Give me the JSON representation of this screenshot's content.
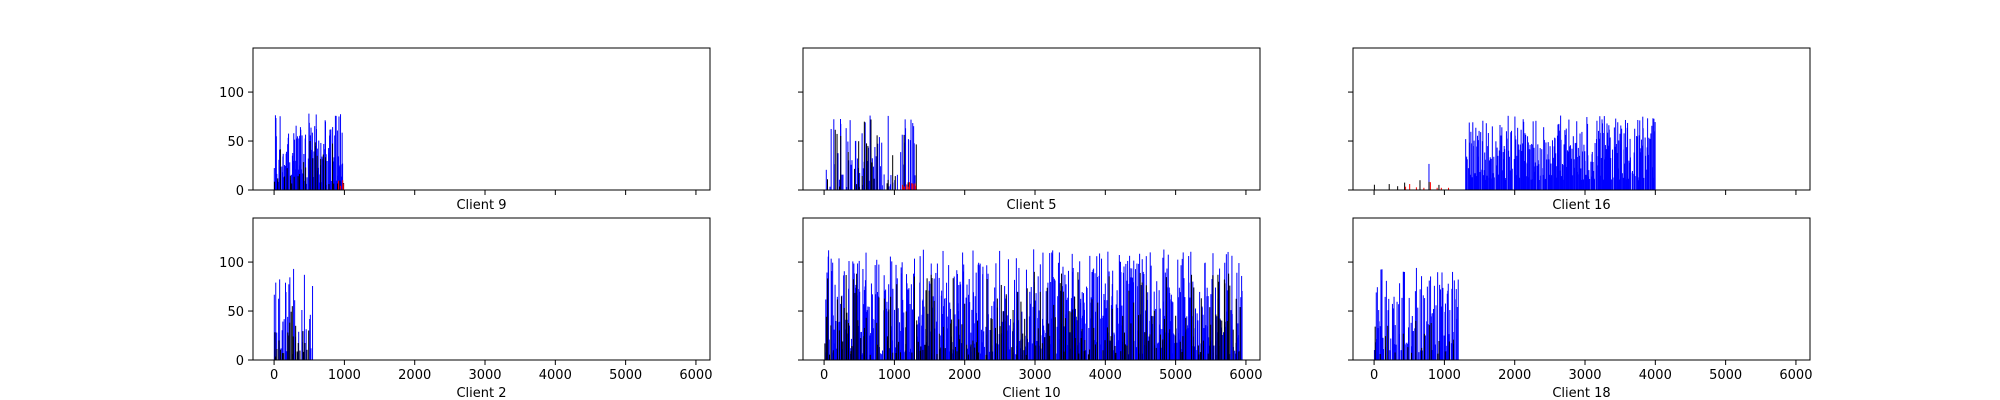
{
  "chart_data": [
    {
      "type": "bar",
      "title": "",
      "xlabel": "Client 9",
      "ylabel": "",
      "xlim": [
        -300,
        6200
      ],
      "ylim": [
        0,
        145
      ],
      "xticks": [
        0,
        1000,
        2000,
        3000,
        4000,
        5000,
        6000
      ],
      "yticks": [
        0,
        50,
        100
      ],
      "show_xticklabels": false,
      "show_yticklabels": true,
      "series": [
        {
          "color": "#0000ff",
          "seed": 9,
          "x_range": [
            0,
            980
          ],
          "n": 130,
          "y_min": 5,
          "y_max": 78,
          "coverage": 0.85
        },
        {
          "color": "#000000",
          "seed": 19,
          "x_range": [
            0,
            1000
          ],
          "n": 25,
          "y_min": 5,
          "y_max": 50,
          "coverage": 1.0
        },
        {
          "color": "#ff0000",
          "seed": 29,
          "x_range": [
            900,
            1010
          ],
          "n": 4,
          "y_min": 2,
          "y_max": 10,
          "coverage": 1.0
        }
      ]
    },
    {
      "type": "bar",
      "title": "",
      "xlabel": "Client 5",
      "ylabel": "",
      "xlim": [
        -300,
        6200
      ],
      "ylim": [
        0,
        145
      ],
      "xticks": [
        0,
        1000,
        2000,
        3000,
        4000,
        5000,
        6000
      ],
      "yticks": [
        0,
        50,
        100
      ],
      "show_xticklabels": false,
      "show_yticklabels": false,
      "series": [
        {
          "color": "#0000ff",
          "seed": 5,
          "x_range": [
            0,
            1300
          ],
          "n": 110,
          "y_min": 3,
          "y_max": 76,
          "coverage": 0.6
        },
        {
          "color": "#000000",
          "seed": 15,
          "x_range": [
            0,
            1320
          ],
          "n": 45,
          "y_min": 3,
          "y_max": 72,
          "coverage": 0.7
        },
        {
          "color": "#ff0000",
          "seed": 25,
          "x_range": [
            1100,
            1320
          ],
          "n": 10,
          "y_min": 2,
          "y_max": 8,
          "coverage": 1.0
        }
      ]
    },
    {
      "type": "bar",
      "title": "",
      "xlabel": "Client 16",
      "ylabel": "",
      "xlim": [
        -300,
        6200
      ],
      "ylim": [
        0,
        145
      ],
      "xticks": [
        0,
        1000,
        2000,
        3000,
        4000,
        5000,
        6000
      ],
      "yticks": [
        0,
        50,
        100
      ],
      "show_xticklabels": false,
      "show_yticklabels": false,
      "series": [
        {
          "color": "#0000ff",
          "seed": 16,
          "x_range": [
            0,
            1250
          ],
          "n": 18,
          "y_min": 3,
          "y_max": 65,
          "coverage": 0.15
        },
        {
          "color": "#0000ff",
          "seed": 26,
          "x_range": [
            1300,
            4000
          ],
          "n": 340,
          "y_min": 10,
          "y_max": 76,
          "coverage": 0.9
        },
        {
          "color": "#000000",
          "seed": 36,
          "x_range": [
            0,
            1300
          ],
          "n": 10,
          "y_min": 2,
          "y_max": 10,
          "coverage": 0.5
        },
        {
          "color": "#ff0000",
          "seed": 46,
          "x_range": [
            400,
            1100
          ],
          "n": 8,
          "y_min": 2,
          "y_max": 8,
          "coverage": 1.0
        }
      ]
    },
    {
      "type": "bar",
      "title": "",
      "xlabel": "Client 2",
      "ylabel": "",
      "xlim": [
        -300,
        6200
      ],
      "ylim": [
        0,
        145
      ],
      "xticks": [
        0,
        1000,
        2000,
        3000,
        4000,
        5000,
        6000
      ],
      "yticks": [
        0,
        50,
        100
      ],
      "show_xticklabels": true,
      "show_yticklabels": true,
      "series": [
        {
          "color": "#0000ff",
          "seed": 2,
          "x_range": [
            0,
            550
          ],
          "n": 40,
          "y_min": 3,
          "y_max": 93,
          "coverage": 0.7
        },
        {
          "color": "#000000",
          "seed": 12,
          "x_range": [
            0,
            500
          ],
          "n": 30,
          "y_min": 3,
          "y_max": 55,
          "coverage": 0.8
        }
      ]
    },
    {
      "type": "bar",
      "title": "",
      "xlabel": "Client 10",
      "ylabel": "",
      "xlim": [
        -300,
        6200
      ],
      "ylim": [
        0,
        145
      ],
      "xticks": [
        0,
        1000,
        2000,
        3000,
        4000,
        5000,
        6000
      ],
      "yticks": [
        0,
        50,
        100
      ],
      "show_xticklabels": true,
      "show_yticklabels": false,
      "series": [
        {
          "color": "#0000ff",
          "seed": 10,
          "x_range": [
            0,
            5950
          ],
          "n": 780,
          "y_min": 5,
          "y_max": 113,
          "coverage": 0.85
        },
        {
          "color": "#000000",
          "seed": 20,
          "x_range": [
            0,
            5950
          ],
          "n": 260,
          "y_min": 5,
          "y_max": 90,
          "coverage": 0.75
        }
      ]
    },
    {
      "type": "bar",
      "title": "",
      "xlabel": "Client 18",
      "ylabel": "",
      "xlim": [
        -300,
        6200
      ],
      "ylim": [
        0,
        145
      ],
      "xticks": [
        0,
        1000,
        2000,
        3000,
        4000,
        5000,
        6000
      ],
      "yticks": [
        0,
        50,
        100
      ],
      "show_xticklabels": true,
      "show_yticklabels": false,
      "series": [
        {
          "color": "#0000ff",
          "seed": 18,
          "x_range": [
            0,
            1200
          ],
          "n": 140,
          "y_min": 8,
          "y_max": 94,
          "coverage": 0.75
        },
        {
          "color": "#000000",
          "seed": 28,
          "x_range": [
            0,
            1150
          ],
          "n": 20,
          "y_min": 5,
          "y_max": 40,
          "coverage": 0.9
        }
      ]
    }
  ]
}
